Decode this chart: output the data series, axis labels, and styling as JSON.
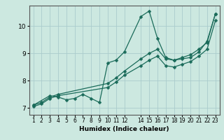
{
  "xlabel": "Humidex (Indice chaleur)",
  "bg_color": "#cce8e0",
  "grid_color": "#aacccc",
  "line_color": "#1a6b5a",
  "xlim": [
    0.5,
    23.5
  ],
  "ylim": [
    6.75,
    10.75
  ],
  "xticks": [
    1,
    2,
    3,
    4,
    5,
    6,
    7,
    8,
    9,
    10,
    11,
    12,
    14,
    15,
    16,
    17,
    18,
    19,
    20,
    21,
    22,
    23
  ],
  "yticks": [
    7,
    8,
    9,
    10
  ],
  "series": [
    {
      "x": [
        1,
        3,
        4,
        5,
        6,
        7,
        8,
        9,
        10,
        11,
        12,
        14,
        15,
        16,
        17,
        18,
        19,
        20,
        21,
        22,
        23
      ],
      "y": [
        7.1,
        7.45,
        7.4,
        7.3,
        7.35,
        7.5,
        7.35,
        7.2,
        8.65,
        8.75,
        9.05,
        10.35,
        10.55,
        9.55,
        8.85,
        8.75,
        8.8,
        8.85,
        9.05,
        9.45,
        10.45
      ]
    },
    {
      "x": [
        1,
        2,
        3,
        4,
        10,
        11,
        12,
        14,
        15,
        16,
        17,
        18,
        19,
        20,
        21,
        22,
        23
      ],
      "y": [
        7.1,
        7.2,
        7.4,
        7.5,
        7.9,
        8.1,
        8.35,
        8.8,
        9.0,
        9.15,
        8.8,
        8.75,
        8.85,
        8.95,
        9.15,
        9.4,
        10.45
      ]
    },
    {
      "x": [
        1,
        2,
        3,
        4,
        10,
        11,
        12,
        14,
        15,
        16,
        17,
        18,
        19,
        20,
        21,
        22,
        23
      ],
      "y": [
        7.05,
        7.15,
        7.35,
        7.45,
        7.75,
        7.95,
        8.2,
        8.55,
        8.75,
        8.9,
        8.55,
        8.5,
        8.6,
        8.7,
        8.9,
        9.15,
        10.2
      ]
    }
  ]
}
